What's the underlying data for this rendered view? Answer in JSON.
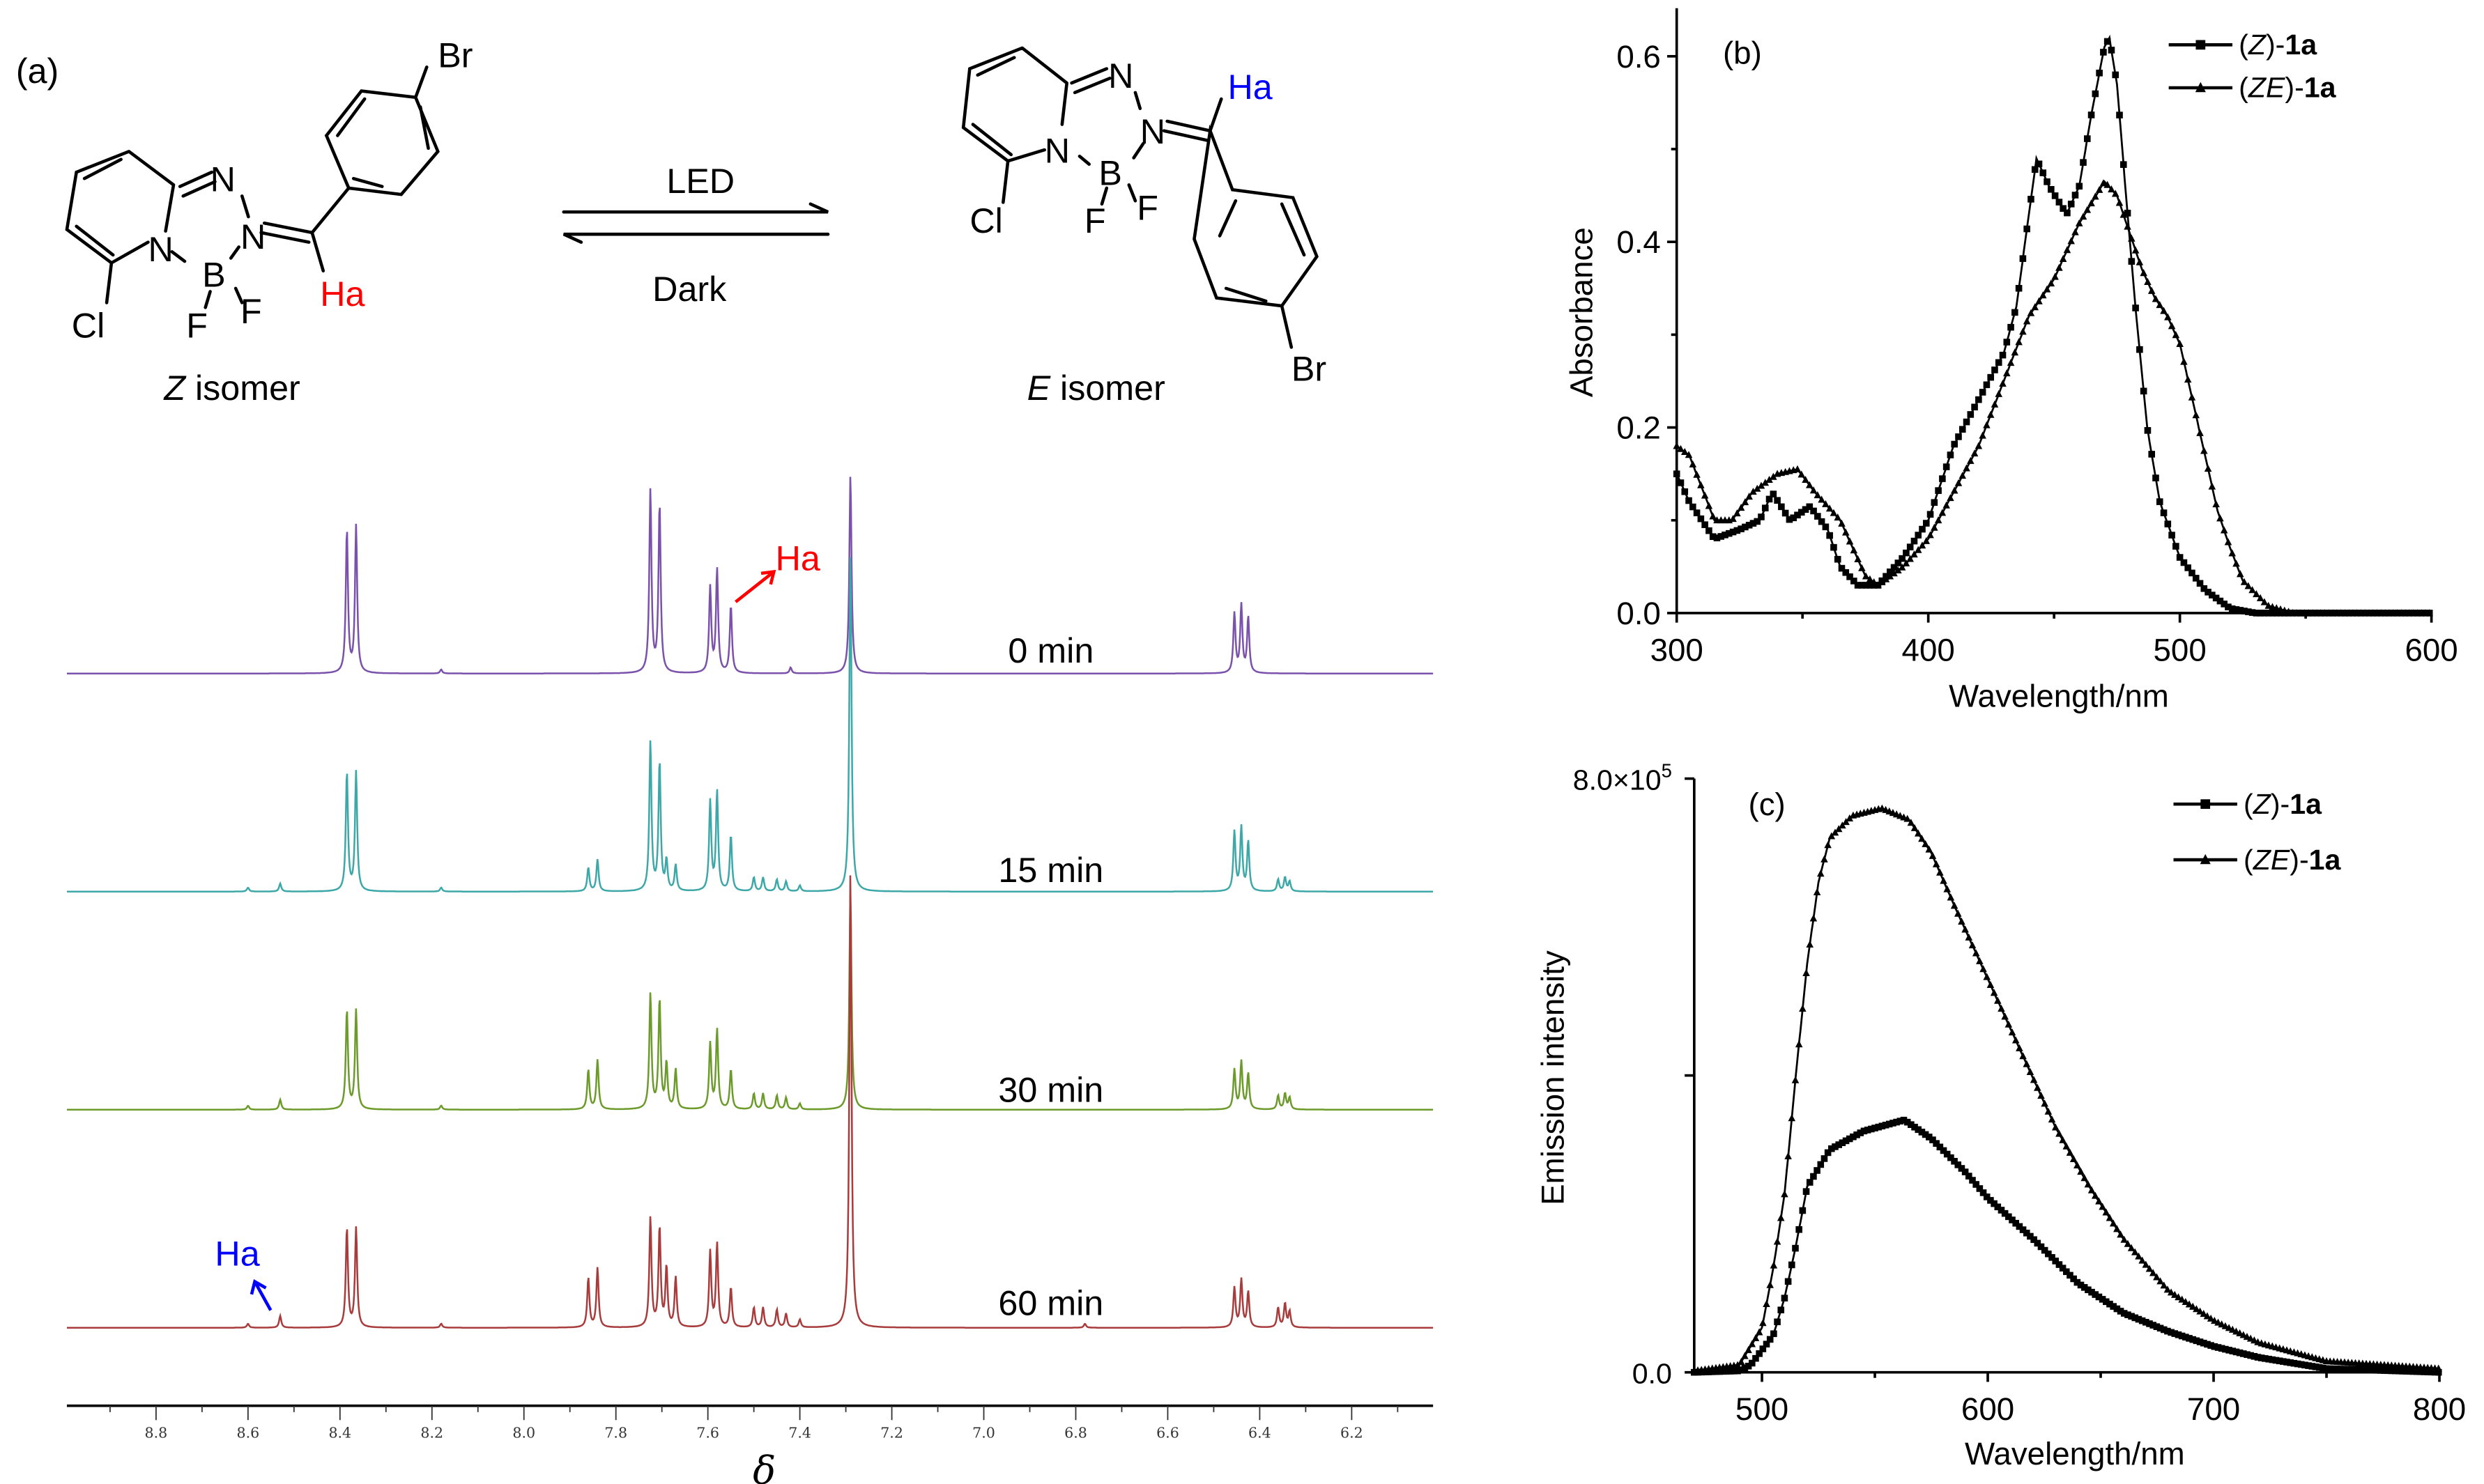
{
  "panel_labels": {
    "a": "(a)",
    "b": "(b)",
    "c": "(c)"
  },
  "scheme": {
    "z_isomer": {
      "label_italic": "Z",
      "label_rest": " isomer",
      "atoms": {
        "N1": "N",
        "N2": "N",
        "N3": "N",
        "B": "B",
        "F1": "F",
        "F2": "F",
        "Cl": "Cl",
        "Br": "Br",
        "Ha": "Ha"
      },
      "ha_color": "#ff0000"
    },
    "e_isomer": {
      "label_italic": "E",
      "label_rest": " isomer",
      "atoms": {
        "N1": "N",
        "N2": "N",
        "N3": "N",
        "B": "B",
        "F1": "F",
        "F2": "F",
        "Cl": "Cl",
        "Br": "Br",
        "Ha": "Ha"
      },
      "ha_color": "#0000ff"
    },
    "forward_label": "LED",
    "reverse_label": "Dark"
  },
  "chart_data": [
    {
      "type": "line",
      "panel": "(a)",
      "xlabel": "δ",
      "x_ticks": [
        "8.8",
        "8.6",
        "8.4",
        "8.2",
        "8.0",
        "7.8",
        "7.6",
        "7.4",
        "7.2",
        "7.0",
        "6.8",
        "6.6",
        "6.4",
        "6.2"
      ],
      "xlim": [
        8.98,
        6.01
      ],
      "x_reversed": true,
      "annotations": [
        {
          "text": "Ha",
          "color": "#ff0000",
          "spectrum": "0 min",
          "ppm": 7.55
        },
        {
          "text": "Ha",
          "color": "#0000ff",
          "spectrum": "60 min",
          "ppm": 8.53
        }
      ],
      "series": [
        {
          "name": "0 min",
          "color": "#7b52ab",
          "peaks": [
            [
              8.385,
              0.72
            ],
            [
              8.365,
              0.74
            ],
            [
              8.18,
              0.02
            ],
            [
              7.725,
              0.92
            ],
            [
              7.705,
              0.85
            ],
            [
              7.595,
              0.43
            ],
            [
              7.58,
              0.52
            ],
            [
              7.55,
              0.34
            ],
            [
              7.42,
              0.03
            ],
            [
              7.29,
              1.0
            ],
            [
              6.455,
              0.3
            ],
            [
              6.44,
              0.34
            ],
            [
              6.425,
              0.28
            ]
          ]
        },
        {
          "name": "15 min",
          "color": "#3ea8a8",
          "peaks": [
            [
              8.6,
              0.02
            ],
            [
              8.53,
              0.04
            ],
            [
              8.385,
              0.6
            ],
            [
              8.365,
              0.6
            ],
            [
              8.18,
              0.02
            ],
            [
              7.86,
              0.12
            ],
            [
              7.84,
              0.16
            ],
            [
              7.725,
              0.75
            ],
            [
              7.705,
              0.65
            ],
            [
              7.69,
              0.15
            ],
            [
              7.67,
              0.13
            ],
            [
              7.595,
              0.45
            ],
            [
              7.58,
              0.5
            ],
            [
              7.55,
              0.28
            ],
            [
              7.5,
              0.07
            ],
            [
              7.48,
              0.07
            ],
            [
              7.45,
              0.06
            ],
            [
              7.43,
              0.05
            ],
            [
              7.4,
              0.03
            ],
            [
              7.29,
              1.7
            ],
            [
              6.455,
              0.3
            ],
            [
              6.44,
              0.32
            ],
            [
              6.425,
              0.25
            ],
            [
              6.36,
              0.06
            ],
            [
              6.345,
              0.07
            ],
            [
              6.335,
              0.05
            ]
          ]
        },
        {
          "name": "30 min",
          "color": "#6c9b2c",
          "peaks": [
            [
              8.6,
              0.02
            ],
            [
              8.53,
              0.05
            ],
            [
              8.385,
              0.5
            ],
            [
              8.365,
              0.5
            ],
            [
              8.18,
              0.02
            ],
            [
              7.86,
              0.2
            ],
            [
              7.84,
              0.25
            ],
            [
              7.725,
              0.58
            ],
            [
              7.705,
              0.55
            ],
            [
              7.69,
              0.23
            ],
            [
              7.67,
              0.2
            ],
            [
              7.595,
              0.33
            ],
            [
              7.58,
              0.4
            ],
            [
              7.55,
              0.2
            ],
            [
              7.5,
              0.08
            ],
            [
              7.48,
              0.08
            ],
            [
              7.45,
              0.07
            ],
            [
              7.43,
              0.06
            ],
            [
              7.4,
              0.03
            ],
            [
              7.29,
              1.1
            ],
            [
              6.455,
              0.2
            ],
            [
              6.44,
              0.24
            ],
            [
              6.425,
              0.18
            ],
            [
              6.36,
              0.07
            ],
            [
              6.345,
              0.08
            ],
            [
              6.335,
              0.06
            ]
          ]
        },
        {
          "name": "60 min",
          "color": "#a83c3c",
          "peaks": [
            [
              8.6,
              0.02
            ],
            [
              8.53,
              0.06
            ],
            [
              8.385,
              0.5
            ],
            [
              8.365,
              0.5
            ],
            [
              8.18,
              0.02
            ],
            [
              7.86,
              0.25
            ],
            [
              7.84,
              0.3
            ],
            [
              7.725,
              0.55
            ],
            [
              7.705,
              0.5
            ],
            [
              7.69,
              0.3
            ],
            [
              7.67,
              0.25
            ],
            [
              7.595,
              0.38
            ],
            [
              7.58,
              0.42
            ],
            [
              7.55,
              0.2
            ],
            [
              7.5,
              0.1
            ],
            [
              7.48,
              0.1
            ],
            [
              7.45,
              0.09
            ],
            [
              7.43,
              0.07
            ],
            [
              7.4,
              0.04
            ],
            [
              7.29,
              2.3
            ],
            [
              6.78,
              0.02
            ],
            [
              6.455,
              0.2
            ],
            [
              6.44,
              0.24
            ],
            [
              6.425,
              0.18
            ],
            [
              6.36,
              0.1
            ],
            [
              6.345,
              0.12
            ],
            [
              6.335,
              0.08
            ]
          ]
        }
      ]
    },
    {
      "type": "line",
      "panel": "(b)",
      "xlabel": "Wavelength/nm",
      "ylabel": "Absorbance",
      "xlim": [
        300,
        600
      ],
      "ylim": [
        0,
        0.65
      ],
      "x_ticks": [
        "300",
        "400",
        "500",
        "600"
      ],
      "y_ticks": [
        "0.0",
        "0.2",
        "0.4",
        "0.6"
      ],
      "legend": "top-right",
      "series": [
        {
          "name_pre": "(",
          "name_italic": "Z",
          "name_mid": ")-",
          "name_bold": "1a",
          "marker": "square",
          "x": [
            300,
            305,
            315,
            325,
            333,
            338,
            345,
            353,
            360,
            365,
            372,
            380,
            390,
            400,
            410,
            420,
            430,
            435,
            440,
            443,
            448,
            455,
            460,
            465,
            470,
            472,
            475,
            478,
            482,
            487,
            492,
            500,
            510,
            520,
            530,
            600
          ],
          "y": [
            0.15,
            0.12,
            0.08,
            0.09,
            0.1,
            0.13,
            0.1,
            0.115,
            0.09,
            0.05,
            0.03,
            0.03,
            0.06,
            0.1,
            0.18,
            0.23,
            0.28,
            0.33,
            0.43,
            0.49,
            0.46,
            0.43,
            0.46,
            0.54,
            0.61,
            0.62,
            0.57,
            0.47,
            0.34,
            0.2,
            0.12,
            0.06,
            0.025,
            0.005,
            0,
            0
          ]
        },
        {
          "name_pre": "(",
          "name_italic": "ZE",
          "name_mid": ")-",
          "name_bold": "1a",
          "marker": "triangle",
          "x": [
            300,
            305,
            315,
            322,
            330,
            340,
            348,
            355,
            365,
            370,
            375,
            380,
            390,
            400,
            410,
            420,
            430,
            440,
            450,
            460,
            470,
            475,
            480,
            485,
            490,
            495,
            500,
            505,
            510,
            515,
            520,
            525,
            535,
            545,
            600
          ],
          "y": [
            0.18,
            0.17,
            0.1,
            0.1,
            0.13,
            0.15,
            0.155,
            0.13,
            0.1,
            0.07,
            0.04,
            0.03,
            0.05,
            0.08,
            0.13,
            0.18,
            0.25,
            0.32,
            0.36,
            0.42,
            0.465,
            0.45,
            0.41,
            0.37,
            0.34,
            0.32,
            0.29,
            0.23,
            0.17,
            0.11,
            0.07,
            0.035,
            0.008,
            0,
            0
          ]
        }
      ]
    },
    {
      "type": "line",
      "panel": "(c)",
      "xlabel": "Wavelength/nm",
      "ylabel": "Emission intensity",
      "xlim": [
        470,
        800
      ],
      "ylim": [
        0,
        800000
      ],
      "x_ticks": [
        "500",
        "600",
        "700",
        "800"
      ],
      "y_ticks": [
        {
          "base": "0.0",
          "exp": ""
        },
        {
          "base": "8.0×10",
          "exp": "5"
        }
      ],
      "legend": "top-right",
      "series": [
        {
          "name_pre": "(",
          "name_italic": "Z",
          "name_mid": ")-",
          "name_bold": "1a",
          "marker": "square",
          "x": [
            470,
            490,
            495,
            505,
            510,
            515,
            520,
            530,
            545,
            563,
            575,
            590,
            600,
            620,
            640,
            660,
            680,
            700,
            720,
            750,
            800
          ],
          "y": [
            0,
            2000,
            10000,
            50000,
            100000,
            170000,
            250000,
            300000,
            325000,
            340000,
            315000,
            270000,
            235000,
            180000,
            120000,
            80000,
            55000,
            35000,
            20000,
            5000,
            0
          ]
        },
        {
          "name_pre": "(",
          "name_italic": "ZE",
          "name_mid": ")-",
          "name_bold": "1a",
          "marker": "triangle",
          "x": [
            470,
            490,
            500,
            505,
            510,
            515,
            520,
            525,
            530,
            540,
            553,
            565,
            575,
            585,
            600,
            615,
            630,
            645,
            660,
            680,
            700,
            720,
            750,
            800
          ],
          "y": [
            2000,
            10000,
            60000,
            140000,
            240000,
            400000,
            550000,
            660000,
            720000,
            750000,
            760000,
            745000,
            700000,
            630000,
            530000,
            430000,
            330000,
            250000,
            180000,
            110000,
            70000,
            40000,
            15000,
            5000
          ]
        }
      ]
    }
  ]
}
